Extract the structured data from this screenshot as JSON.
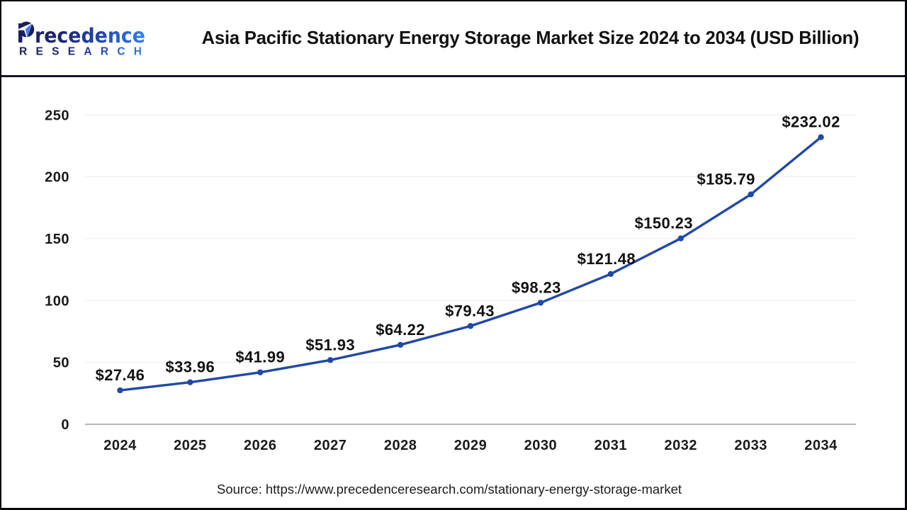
{
  "header": {
    "logo": {
      "line1": "Precedence",
      "line2": "RESEARCH",
      "color_dark": "#1a1f5e",
      "color_bright": "#2f7ff2",
      "leaf_navy": "#1a1f5e",
      "leaf_blue": "#3b7ded"
    },
    "title": "Asia Pacific Stationary Energy Storage Market Size 2024 to 2034 (USD Billion)"
  },
  "chart_data": {
    "type": "line",
    "categories": [
      "2024",
      "2025",
      "2026",
      "2027",
      "2028",
      "2029",
      "2030",
      "2031",
      "2032",
      "2033",
      "2034"
    ],
    "values": [
      27.46,
      33.96,
      41.99,
      51.93,
      64.22,
      79.43,
      98.23,
      121.48,
      150.23,
      185.79,
      232.02
    ],
    "point_labels": [
      "$27.46",
      "$33.96",
      "$41.99",
      "$51.93",
      "$64.22",
      "$79.43",
      "$98.23",
      "$121.48",
      "$150.23",
      "$185.79",
      "$232.02"
    ],
    "title": "Asia Pacific Stationary Energy Storage Market Size 2024 to 2034 (USD Billion)",
    "xlabel": "",
    "ylabel": "",
    "y_ticks": [
      0,
      50,
      100,
      150,
      200,
      250
    ],
    "ylim": [
      0,
      250
    ],
    "grid": "horizontal",
    "legend": "none",
    "line_color": "#2148a5",
    "marker_color": "#2148a5",
    "label_color": "#111111",
    "tick_color": "#1a1a1a",
    "gridline_color": "#ebebeb",
    "axis_line_color": "#b5b5b5"
  },
  "footer": {
    "source": "Source: https://www.precedenceresearch.com/stationary-energy-storage-market"
  }
}
